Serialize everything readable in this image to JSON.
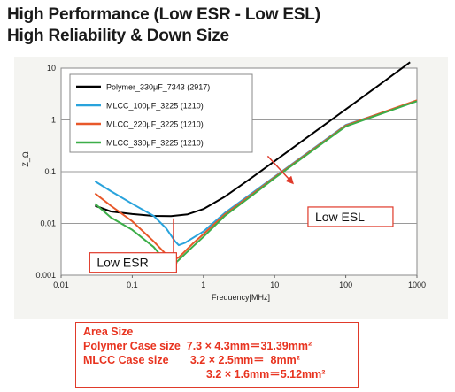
{
  "header": {
    "line1": "High Performance (Low ESR - Low ESL)",
    "line2": "High Reliability & Down Size"
  },
  "chart_data": {
    "type": "line",
    "xlabel": "Frequency[MHz]",
    "ylabel": "Z_Ω",
    "xscale": "log",
    "yscale": "log",
    "xlim": [
      0.01,
      1000
    ],
    "ylim": [
      0.001,
      10
    ],
    "x_ticks": [
      "0.01",
      "0.1",
      "1",
      "10",
      "100",
      "1000"
    ],
    "y_ticks": [
      "0.001",
      "0.01",
      "0.1",
      "1",
      "10"
    ],
    "grid": "horizontal",
    "legend": "top-left",
    "series": [
      {
        "name": "Polymer_330μF_7343 (2917)",
        "color": "#000000",
        "points": [
          [
            0.03,
            0.022
          ],
          [
            0.05,
            0.017
          ],
          [
            0.1,
            0.0152
          ],
          [
            0.2,
            0.014
          ],
          [
            0.35,
            0.0138
          ],
          [
            0.6,
            0.015
          ],
          [
            1,
            0.019
          ],
          [
            2,
            0.033
          ],
          [
            5,
            0.08
          ],
          [
            10,
            0.16
          ],
          [
            30,
            0.48
          ],
          [
            100,
            1.6
          ],
          [
            300,
            4.8
          ],
          [
            800,
            13
          ]
        ]
      },
      {
        "name": "MLCC_100μF_3225 (1210)",
        "color": "#29a3dc",
        "points": [
          [
            0.03,
            0.065
          ],
          [
            0.05,
            0.042
          ],
          [
            0.1,
            0.024
          ],
          [
            0.2,
            0.014
          ],
          [
            0.3,
            0.008
          ],
          [
            0.4,
            0.0045
          ],
          [
            0.45,
            0.0038
          ],
          [
            0.55,
            0.0042
          ],
          [
            0.8,
            0.0058
          ],
          [
            1,
            0.007
          ],
          [
            2,
            0.016
          ],
          [
            5,
            0.04
          ],
          [
            10,
            0.08
          ],
          [
            100,
            0.8
          ],
          [
            1000,
            2.3
          ]
        ]
      },
      {
        "name": "MLCC_220μF_3225 (1210)",
        "color": "#e8582a",
        "points": [
          [
            0.03,
            0.038
          ],
          [
            0.05,
            0.022
          ],
          [
            0.1,
            0.011
          ],
          [
            0.2,
            0.0045
          ],
          [
            0.3,
            0.0025
          ],
          [
            0.35,
            0.0019
          ],
          [
            0.45,
            0.0022
          ],
          [
            0.7,
            0.004
          ],
          [
            1,
            0.0062
          ],
          [
            2,
            0.015
          ],
          [
            5,
            0.038
          ],
          [
            10,
            0.078
          ],
          [
            100,
            0.78
          ],
          [
            1000,
            2.4
          ]
        ]
      },
      {
        "name": "MLCC_330μF_3225 (1210)",
        "color": "#3cae49",
        "points": [
          [
            0.03,
            0.024
          ],
          [
            0.05,
            0.013
          ],
          [
            0.1,
            0.0075
          ],
          [
            0.2,
            0.0035
          ],
          [
            0.3,
            0.0018
          ],
          [
            0.33,
            0.0014
          ],
          [
            0.42,
            0.0018
          ],
          [
            0.7,
            0.0035
          ],
          [
            1,
            0.0055
          ],
          [
            2,
            0.014
          ],
          [
            5,
            0.036
          ],
          [
            10,
            0.075
          ],
          [
            100,
            0.75
          ],
          [
            1000,
            2.3
          ]
        ]
      }
    ],
    "annotations": [
      {
        "text": "Low ESR",
        "x": 0.03,
        "y": 0.0015,
        "box_color": "#e03a2a"
      },
      {
        "text": "Low ESL",
        "x": 35,
        "y": 0.0115,
        "box_color": "#e03a2a"
      }
    ]
  },
  "area_box": {
    "title": "Area Size",
    "line1_label": "Polymer Case size",
    "line1_value": "7.3 × 4.3mm＝31.39mm²",
    "line2_label": "MLCC Case size",
    "line2_value": "3.2 × 2.5mm＝  8mm²",
    "line3_value": "3.2 × 1.6mm＝5.12mm²",
    "color": "#e8331f"
  }
}
